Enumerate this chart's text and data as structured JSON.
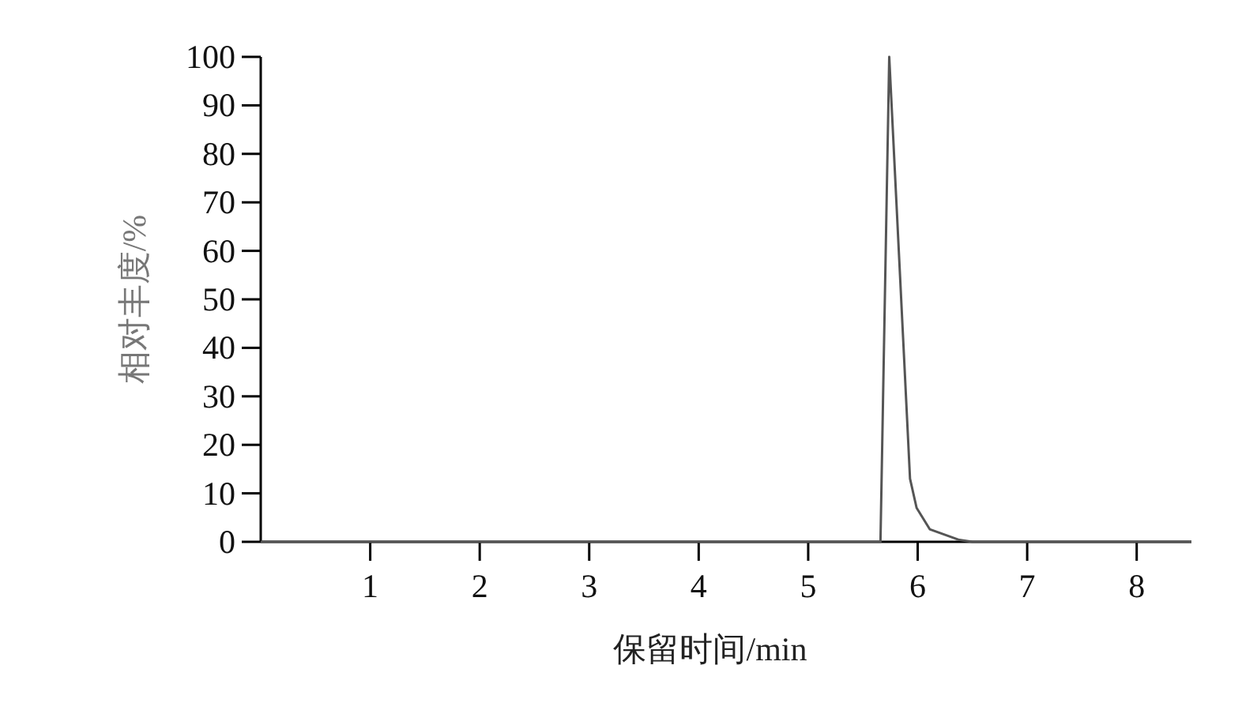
{
  "chart_data": {
    "type": "line",
    "xlabel": "保留时间/min",
    "ylabel": "相对丰度/%",
    "x": [
      0,
      5.66,
      5.74,
      5.87,
      5.93,
      5.99,
      6.11,
      6.38,
      6.5,
      8.5
    ],
    "values": [
      0,
      0,
      100,
      40.5,
      13,
      7,
      2.6,
      0.4,
      0,
      0
    ],
    "color": "#555555",
    "xlim": [
      0,
      8.5
    ],
    "ylim": [
      0,
      100
    ],
    "xticks": [
      1,
      2,
      3,
      4,
      5,
      6,
      7,
      8
    ],
    "yticks": [
      0,
      10,
      20,
      30,
      40,
      50,
      60,
      70,
      80,
      90,
      100
    ]
  }
}
